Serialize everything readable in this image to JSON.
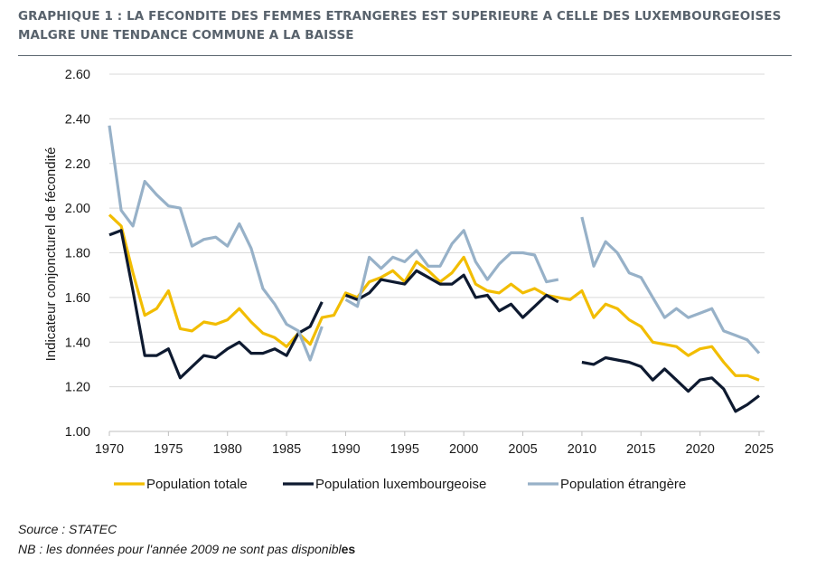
{
  "title": {
    "line1": "GRAPHIQUE 1 : LA FECONDITE DES FEMMES ETRANGERES EST SUPERIEURE A CELLE DES LUXEMBOURGEOISES",
    "line2": "MALGRE UNE TENDANCE COMMUNE A LA BAISSE"
  },
  "footer": {
    "source": "Source : STATEC",
    "nb_main": "NB : les données pour l'année 2009 ne sont pas disponibl",
    "nb_end": "es"
  },
  "chart_data": {
    "type": "line",
    "title": "GRAPHIQUE 1 : LA FECONDITE DES FEMMES ETRANGERES EST SUPERIEURE A CELLE DES LUXEMBOURGEOISES MALGRE UNE TENDANCE COMMUNE A LA BAISSE",
    "xlabel": "",
    "ylabel": "Indicateur conjoncturel de fécondité",
    "xlim": [
      1970,
      2025
    ],
    "ylim": [
      1.0,
      2.6
    ],
    "x_ticks": [
      "1970",
      "1975",
      "1980",
      "1985",
      "1990",
      "1995",
      "2000",
      "2005",
      "2010",
      "2015",
      "2020",
      "2025"
    ],
    "y_ticks": [
      "1.00",
      "1.20",
      "1.40",
      "1.60",
      "1.80",
      "2.00",
      "2.20",
      "2.40",
      "2.60"
    ],
    "grid": "horizontal",
    "legend_position": "bottom",
    "x": [
      1970,
      1971,
      1972,
      1973,
      1974,
      1975,
      1976,
      1977,
      1978,
      1979,
      1980,
      1981,
      1982,
      1983,
      1984,
      1985,
      1986,
      1987,
      1988,
      1989,
      1990,
      1991,
      1992,
      1993,
      1994,
      1995,
      1996,
      1997,
      1998,
      1999,
      2000,
      2001,
      2002,
      2003,
      2004,
      2005,
      2006,
      2007,
      2008,
      2009,
      2010,
      2011,
      2012,
      2013,
      2014,
      2015,
      2016,
      2017,
      2018,
      2019,
      2020,
      2021,
      2022,
      2023,
      2024,
      2025
    ],
    "series": [
      {
        "name": "Population totale",
        "color": "#f2bd00",
        "values": [
          1.97,
          1.92,
          1.71,
          1.52,
          1.55,
          1.63,
          1.46,
          1.45,
          1.49,
          1.48,
          1.5,
          1.55,
          1.49,
          1.44,
          1.42,
          1.38,
          1.44,
          1.39,
          1.51,
          1.52,
          1.62,
          1.6,
          1.67,
          1.69,
          1.72,
          1.67,
          1.76,
          1.72,
          1.67,
          1.71,
          1.78,
          1.66,
          1.63,
          1.62,
          1.66,
          1.62,
          1.64,
          1.61,
          1.6,
          1.59,
          1.63,
          1.51,
          1.57,
          1.55,
          1.5,
          1.47,
          1.4,
          1.39,
          1.38,
          1.34,
          1.37,
          1.38,
          1.31,
          1.25,
          1.25,
          1.23
        ]
      },
      {
        "name": "Population luxembourgeoise",
        "color": "#0e1a30",
        "values": [
          1.88,
          1.9,
          1.63,
          1.34,
          1.34,
          1.37,
          1.24,
          1.29,
          1.34,
          1.33,
          1.37,
          1.4,
          1.35,
          1.35,
          1.37,
          1.34,
          1.44,
          1.47,
          1.58,
          null,
          1.61,
          1.59,
          1.62,
          1.68,
          1.67,
          1.66,
          1.72,
          1.69,
          1.66,
          1.66,
          1.7,
          1.6,
          1.61,
          1.54,
          1.57,
          1.51,
          1.56,
          1.61,
          1.58,
          null,
          1.31,
          1.3,
          1.33,
          1.32,
          1.31,
          1.29,
          1.23,
          1.28,
          1.23,
          1.18,
          1.23,
          1.24,
          1.19,
          1.09,
          1.12,
          1.16
        ]
      },
      {
        "name": "Population étrangère",
        "color": "#97b1c8",
        "values": [
          2.37,
          1.99,
          1.92,
          2.12,
          2.06,
          2.01,
          2.0,
          1.83,
          1.86,
          1.87,
          1.83,
          1.93,
          1.82,
          1.64,
          1.57,
          1.48,
          1.45,
          1.32,
          1.47,
          null,
          1.59,
          1.56,
          1.78,
          1.73,
          1.78,
          1.76,
          1.81,
          1.74,
          1.74,
          1.84,
          1.9,
          1.76,
          1.68,
          1.75,
          1.8,
          1.8,
          1.79,
          1.67,
          1.68,
          null,
          1.96,
          1.74,
          1.85,
          1.8,
          1.71,
          1.69,
          1.6,
          1.51,
          1.55,
          1.51,
          1.53,
          1.55,
          1.45,
          1.43,
          1.41,
          1.35
        ]
      }
    ]
  }
}
